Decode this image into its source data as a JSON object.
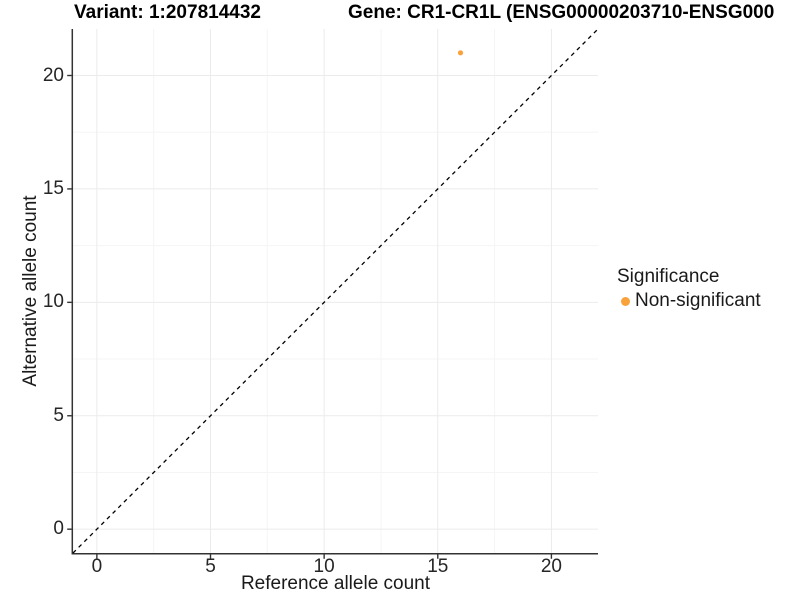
{
  "chart_data": {
    "type": "scatter",
    "title_left": "Variant: 1:207814432",
    "title_right": "Gene: CR1-CR1L (ENSG00000203710-ENSG000",
    "xlabel": "Reference allele count",
    "ylabel": "Alternative allele count",
    "xlim": [
      -1.05,
      22.05
    ],
    "ylim": [
      -1.05,
      22.05
    ],
    "x_ticks": [
      0,
      5,
      10,
      15,
      20
    ],
    "y_ticks": [
      0,
      5,
      10,
      15,
      20
    ],
    "x_minor_ticks": [
      2.5,
      7.5,
      12.5,
      17.5
    ],
    "y_minor_ticks": [
      2.5,
      7.5,
      12.5,
      17.5
    ],
    "grid": true,
    "legend_position": "right",
    "reference_line": {
      "kind": "identity",
      "style": "dashed",
      "from": [
        -1.05,
        -1.05
      ],
      "to": [
        22.05,
        22.05
      ],
      "color": "#000000"
    },
    "points": [
      {
        "x": 16,
        "y": 21,
        "series": "Non-significant",
        "color": "#F9A23C",
        "radius_px": 2.6
      }
    ],
    "legend": {
      "title": "Significance",
      "entries": [
        {
          "label": "Non-significant",
          "color": "#F9A23C"
        }
      ]
    },
    "colors": {
      "axis_line": "#333333",
      "tick_mark": "#333333",
      "grid_major": "#ebebeb",
      "grid_minor": "#f5f5f5",
      "point_orange": "#F9A23C"
    }
  }
}
